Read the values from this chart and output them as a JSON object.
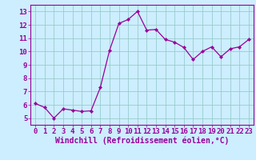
{
  "x": [
    0,
    1,
    2,
    3,
    4,
    5,
    6,
    7,
    8,
    9,
    10,
    11,
    12,
    13,
    14,
    15,
    16,
    17,
    18,
    19,
    20,
    21,
    22,
    23
  ],
  "y": [
    6.1,
    5.8,
    5.0,
    5.7,
    5.6,
    5.5,
    5.55,
    7.3,
    10.1,
    12.1,
    12.4,
    13.0,
    11.6,
    11.65,
    10.9,
    10.7,
    10.3,
    9.4,
    10.0,
    10.35,
    9.6,
    10.2,
    10.35,
    10.9
  ],
  "line_color": "#990099",
  "marker_color": "#990099",
  "bg_color": "#cceeff",
  "grid_color": "#99cccc",
  "text_color": "#990099",
  "xlabel": "Windchill (Refroidissement éolien,°C)",
  "ylim": [
    4.5,
    13.5
  ],
  "xlim": [
    -0.5,
    23.5
  ],
  "yticks": [
    5,
    6,
    7,
    8,
    9,
    10,
    11,
    12,
    13
  ],
  "xticks": [
    0,
    1,
    2,
    3,
    4,
    5,
    6,
    7,
    8,
    9,
    10,
    11,
    12,
    13,
    14,
    15,
    16,
    17,
    18,
    19,
    20,
    21,
    22,
    23
  ],
  "tick_fontsize": 6.5,
  "xlabel_fontsize": 7.0
}
